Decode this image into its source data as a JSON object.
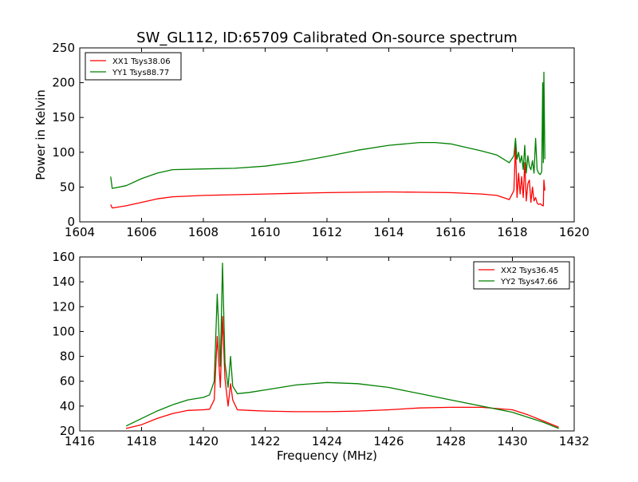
{
  "chart_data": [
    {
      "type": "line",
      "title": "SW_GL112, ID:65709 Calibrated On-source spectrum",
      "xlabel": "",
      "ylabel": "Power in Kelvin",
      "xlim": [
        1604,
        1620
      ],
      "ylim": [
        0,
        250
      ],
      "xticks": [
        1604,
        1606,
        1608,
        1610,
        1612,
        1614,
        1616,
        1618,
        1620
      ],
      "yticks": [
        0,
        50,
        100,
        150,
        200,
        250
      ],
      "legend_position": "top-left",
      "series": [
        {
          "name": "XX1 Tsys38.06",
          "color": "#ff0000",
          "x": [
            1605.0,
            1605.05,
            1605.5,
            1606.0,
            1606.5,
            1607.0,
            1608.0,
            1609.0,
            1610.0,
            1611.0,
            1612.0,
            1613.0,
            1614.0,
            1615.0,
            1616.0,
            1617.0,
            1617.5,
            1617.9,
            1618.05,
            1618.1,
            1618.15,
            1618.2,
            1618.25,
            1618.3,
            1618.35,
            1618.4,
            1618.45,
            1618.5,
            1618.55,
            1618.6,
            1618.65,
            1618.7,
            1618.75,
            1618.8,
            1618.85,
            1618.9,
            1618.95,
            1619.0,
            1619.02,
            1619.05
          ],
          "values": [
            25,
            20,
            23,
            28,
            33,
            36,
            38,
            39,
            40,
            41,
            42,
            42.5,
            43,
            42.5,
            42,
            40,
            38,
            32,
            45,
            110,
            35,
            70,
            40,
            65,
            35,
            85,
            30,
            55,
            60,
            28,
            50,
            30,
            35,
            27,
            25,
            26,
            24,
            23,
            60,
            45
          ]
        },
        {
          "name": "YY1 Tsys88.77",
          "color": "#008000",
          "x": [
            1605.0,
            1605.05,
            1605.5,
            1606.0,
            1606.5,
            1607.0,
            1608.0,
            1609.0,
            1610.0,
            1611.0,
            1612.0,
            1613.0,
            1614.0,
            1615.0,
            1615.5,
            1616.0,
            1617.0,
            1617.5,
            1617.9,
            1618.05,
            1618.1,
            1618.15,
            1618.2,
            1618.25,
            1618.3,
            1618.35,
            1618.4,
            1618.45,
            1618.5,
            1618.55,
            1618.6,
            1618.65,
            1618.7,
            1618.75,
            1618.8,
            1618.85,
            1618.9,
            1618.95,
            1618.98,
            1619.0,
            1619.02,
            1619.05
          ],
          "values": [
            65,
            48,
            52,
            62,
            70,
            75,
            76,
            77,
            80,
            86,
            94,
            103,
            110,
            114,
            114,
            112,
            102,
            96,
            85,
            95,
            120,
            90,
            100,
            85,
            95,
            75,
            110,
            70,
            95,
            80,
            75,
            88,
            70,
            120,
            75,
            70,
            68,
            72,
            200,
            85,
            215,
            90
          ]
        }
      ]
    },
    {
      "type": "line",
      "title": "",
      "xlabel": "Frequency (MHz)",
      "ylabel": "",
      "xlim": [
        1416,
        1432
      ],
      "ylim": [
        20,
        160
      ],
      "xticks": [
        1416,
        1418,
        1420,
        1422,
        1424,
        1426,
        1428,
        1430,
        1432
      ],
      "yticks": [
        20,
        40,
        60,
        80,
        100,
        120,
        140,
        160
      ],
      "legend_position": "top-right",
      "series": [
        {
          "name": "XX2 Tsys36.45",
          "color": "#ff0000",
          "x": [
            1417.5,
            1418.0,
            1418.5,
            1419.0,
            1419.5,
            1420.0,
            1420.2,
            1420.35,
            1420.45,
            1420.55,
            1420.62,
            1420.7,
            1420.8,
            1420.88,
            1420.95,
            1421.1,
            1421.5,
            1422.0,
            1423.0,
            1424.0,
            1425.0,
            1426.0,
            1427.0,
            1428.0,
            1429.0,
            1430.0,
            1430.5,
            1431.0,
            1431.5
          ],
          "values": [
            22,
            25,
            30,
            34,
            36.5,
            37,
            37.5,
            45,
            96,
            55,
            112,
            62,
            40,
            58,
            45,
            37,
            36.5,
            36,
            35.5,
            35.5,
            36,
            37,
            38.5,
            39,
            39,
            37,
            33,
            28,
            23
          ]
        },
        {
          "name": "YY2 Tsys47.66",
          "color": "#008000",
          "x": [
            1417.5,
            1418.0,
            1418.5,
            1419.0,
            1419.5,
            1420.0,
            1420.2,
            1420.35,
            1420.45,
            1420.55,
            1420.62,
            1420.7,
            1420.8,
            1420.88,
            1420.95,
            1421.1,
            1421.5,
            1422.0,
            1423.0,
            1424.0,
            1425.0,
            1426.0,
            1427.0,
            1428.0,
            1429.0,
            1430.0,
            1430.5,
            1431.0,
            1431.5
          ],
          "values": [
            24,
            30,
            36,
            41,
            45,
            47,
            49,
            60,
            130,
            72,
            155,
            75,
            55,
            80,
            56,
            50,
            51,
            53,
            57,
            59,
            58,
            55,
            50,
            45,
            40,
            35,
            31,
            27,
            22
          ]
        }
      ]
    }
  ]
}
